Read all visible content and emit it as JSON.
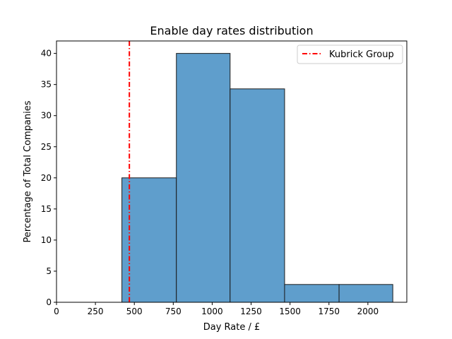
{
  "chart_data": {
    "type": "bar",
    "title": "Enable day rates distribution",
    "xlabel": "Day Rate / £",
    "ylabel": "Percentage of Total Companies",
    "xlim": [
      0,
      2250
    ],
    "ylim": [
      0,
      42
    ],
    "xticks": [
      0,
      250,
      500,
      750,
      1000,
      1250,
      1500,
      1750,
      2000
    ],
    "yticks": [
      0,
      5,
      10,
      15,
      20,
      25,
      30,
      35,
      40
    ],
    "bins": [
      {
        "start": 420,
        "end": 770,
        "value": 20.0
      },
      {
        "start": 770,
        "end": 1115,
        "value": 40.0
      },
      {
        "start": 1115,
        "end": 1465,
        "value": 34.3
      },
      {
        "start": 1465,
        "end": 1815,
        "value": 2.86
      },
      {
        "start": 1815,
        "end": 2160,
        "value": 2.86
      }
    ],
    "bar_color": "#5f9ecc",
    "reference_line": {
      "label": "Kubrick Group",
      "x": 468,
      "color": "#ff0000",
      "style": "dash-dot"
    },
    "legend_position": "top-right",
    "grid": false
  }
}
